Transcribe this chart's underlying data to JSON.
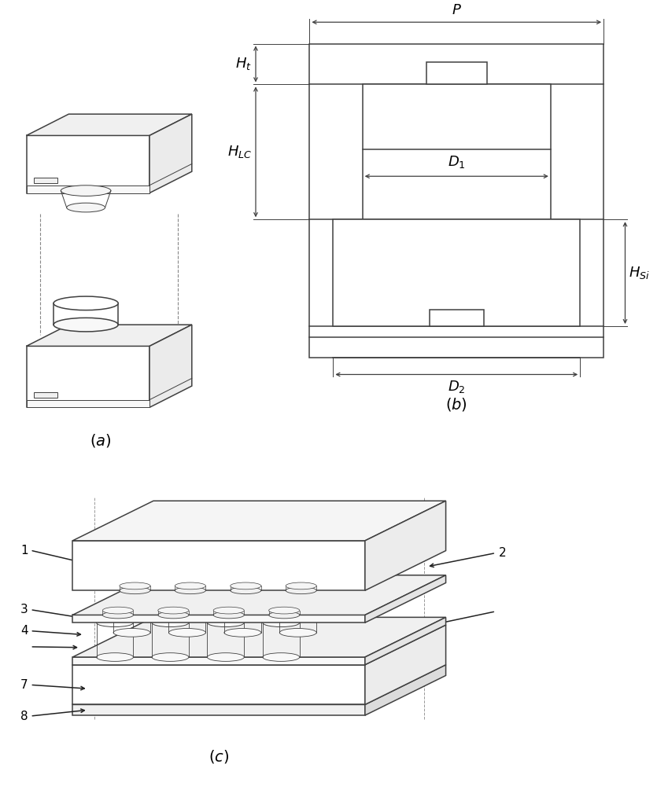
{
  "fig_width": 8.35,
  "fig_height": 10.0,
  "dpi": 100,
  "bg_color": "#ffffff",
  "lc": "#404040",
  "lw_main": 1.1,
  "lw_thin": 0.7,
  "lw_arr": 0.9,
  "fc_white": "#ffffff",
  "fc_light": "#f5f5f5",
  "fc_mid": "#eeeeee",
  "fc_dark": "#e2e2e2",
  "ann_fontsize": 11,
  "label_fontsize": 14,
  "dim_fontsize": 13
}
